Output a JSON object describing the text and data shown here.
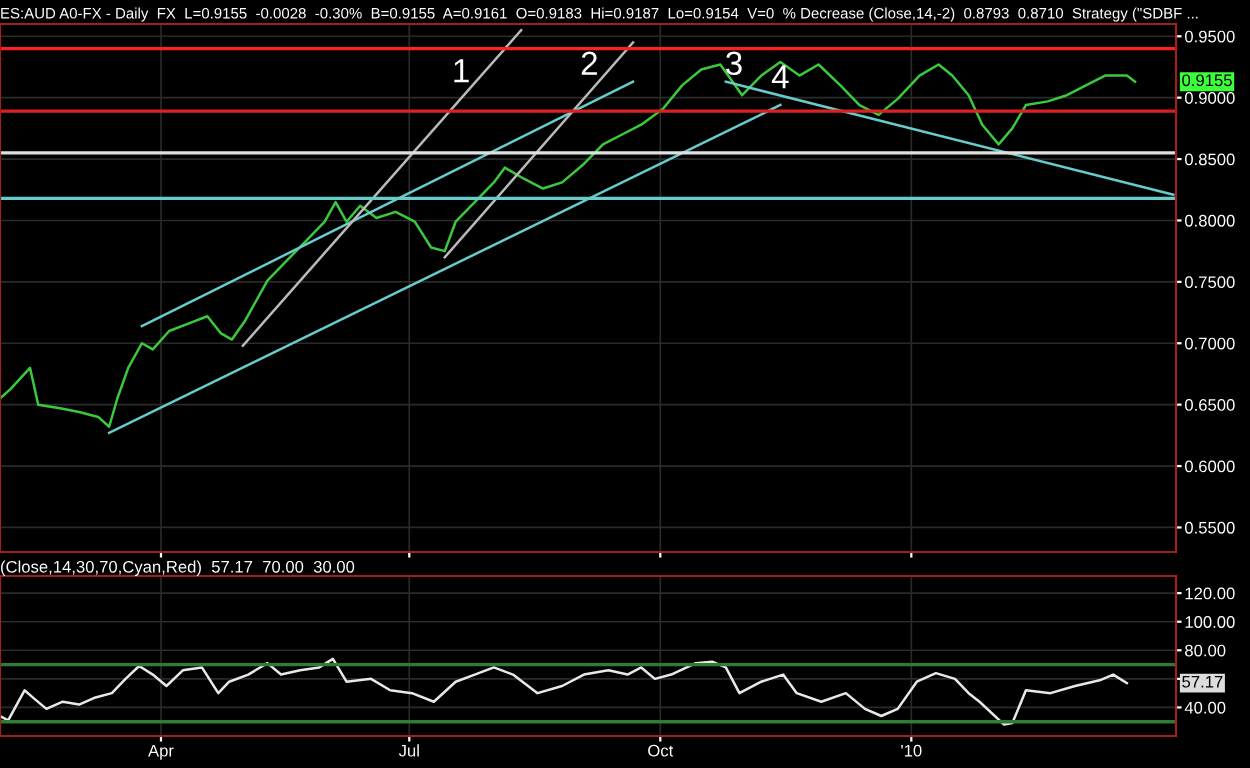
{
  "chart_data": [
    {
      "type": "line",
      "title": "ES:AUD A0-FX - Daily  FX  L=0.9155  -0.0028  -0.30%  B=0.9155  A=0.9161  O=0.9183  Hi=0.9187  Lo=0.9154  V=0  % Decrease (Close,14,-2)  0.8793  0.8710  Strategy (\"SDBF ...",
      "xlim": [
        "2009-02-01",
        "2010-04-08"
      ],
      "ylim": [
        0.53,
        0.96
      ],
      "xticks": [
        {
          "value": "2009-04-01",
          "label": null
        },
        {
          "value": "2009-07-01",
          "label": null
        },
        {
          "value": "2009-10-01",
          "label": null
        },
        {
          "value": "2010-01-01",
          "label": null
        }
      ],
      "yticks": [
        {
          "value": 0.55,
          "label": "0.5500"
        },
        {
          "value": 0.6,
          "label": "0.6000"
        },
        {
          "value": 0.65,
          "label": "0.6500"
        },
        {
          "value": 0.7,
          "label": "0.7000"
        },
        {
          "value": 0.75,
          "label": "0.7500"
        },
        {
          "value": 0.8,
          "label": "0.8000"
        },
        {
          "value": 0.85,
          "label": "0.8500"
        },
        {
          "value": 0.9,
          "label": "0.9000"
        },
        {
          "value": 0.95,
          "label": "0.9500"
        }
      ],
      "tick_labels": "y",
      "grid": true,
      "legend": false,
      "series": [
        {
          "color": "#3cc83c",
          "x": [
            "2009-02-01",
            "2009-02-05",
            "2009-02-12",
            "2009-02-15",
            "2009-02-23",
            "2009-03-02",
            "2009-03-09",
            "2009-03-13",
            "2009-03-16",
            "2009-03-20",
            "2009-03-25",
            "2009-03-29",
            "2009-04-04",
            "2009-04-11",
            "2009-04-18",
            "2009-04-23",
            "2009-04-27",
            "2009-05-02",
            "2009-05-10",
            "2009-05-17",
            "2009-05-24",
            "2009-05-31",
            "2009-06-04",
            "2009-06-08",
            "2009-06-13",
            "2009-06-19",
            "2009-06-26",
            "2009-07-03",
            "2009-07-09",
            "2009-07-14",
            "2009-07-18",
            "2009-07-25",
            "2009-08-01",
            "2009-08-05",
            "2009-08-12",
            "2009-08-19",
            "2009-08-26",
            "2009-09-03",
            "2009-09-10",
            "2009-09-17",
            "2009-09-24",
            "2009-10-02",
            "2009-10-09",
            "2009-10-16",
            "2009-10-23",
            "2009-10-31",
            "2009-11-07",
            "2009-11-14",
            "2009-11-21",
            "2009-11-28",
            "2009-12-06",
            "2009-12-13",
            "2009-12-20",
            "2009-12-27",
            "2010-01-04",
            "2010-01-11",
            "2010-01-16",
            "2010-01-22",
            "2010-01-27",
            "2010-02-02",
            "2010-02-07",
            "2010-02-12",
            "2010-02-20",
            "2010-02-27",
            "2010-03-06",
            "2010-03-13",
            "2010-03-21",
            "2010-03-24"
          ],
          "values": [
            0.655,
            0.663,
            0.68,
            0.65,
            0.647,
            0.644,
            0.64,
            0.632,
            0.655,
            0.68,
            0.7,
            0.695,
            0.71,
            0.716,
            0.722,
            0.708,
            0.703,
            0.719,
            0.751,
            0.767,
            0.783,
            0.799,
            0.815,
            0.799,
            0.812,
            0.802,
            0.807,
            0.799,
            0.778,
            0.775,
            0.799,
            0.815,
            0.831,
            0.843,
            0.834,
            0.826,
            0.831,
            0.846,
            0.862,
            0.87,
            0.878,
            0.891,
            0.91,
            0.923,
            0.927,
            0.902,
            0.918,
            0.929,
            0.918,
            0.927,
            0.91,
            0.894,
            0.886,
            0.899,
            0.918,
            0.927,
            0.918,
            0.902,
            0.878,
            0.862,
            0.875,
            0.894,
            0.897,
            0.902,
            0.91,
            0.918,
            0.918,
            0.913
          ]
        },
        {
          "color": "#66cccc",
          "x": [
            "2009-03-13",
            "2009-11-14"
          ],
          "values": [
            0.627,
            0.894
          ]
        },
        {
          "color": "#66cccc",
          "x": [
            "2009-03-25",
            "2009-09-21"
          ],
          "values": [
            0.714,
            0.913
          ]
        },
        {
          "color": "#66cccc",
          "x": [
            "2009-10-25",
            "2010-04-07"
          ],
          "values": [
            0.913,
            0.821
          ]
        },
        {
          "color": "#bbbbbb",
          "x": [
            "2009-05-01",
            "2009-08-11"
          ],
          "values": [
            0.698,
            0.955
          ]
        },
        {
          "color": "#bbbbbb",
          "x": [
            "2009-07-14",
            "2009-09-21"
          ],
          "values": [
            0.77,
            0.945
          ]
        }
      ],
      "ref_lines": [
        {
          "axis": "y",
          "value": 0.94,
          "color": "#ff2020"
        },
        {
          "axis": "y",
          "value": 0.889,
          "color": "#e02020"
        },
        {
          "axis": "y",
          "value": 0.855,
          "color": "#e0e0e0"
        },
        {
          "axis": "y",
          "value": 0.818,
          "color": "#66cccc"
        }
      ],
      "annotations": [
        {
          "text": "1",
          "x": "2009-07-20",
          "y": 0.907
        },
        {
          "text": "2",
          "x": "2009-09-05",
          "y": 0.913
        },
        {
          "text": "3",
          "x": "2009-10-28",
          "y": 0.913
        },
        {
          "text": "4",
          "x": "2009-11-14",
          "y": 0.902
        },
        "0.9155"
      ]
    },
    {
      "type": "line",
      "title": "(Close,14,30,70,Cyan,Red)  57.17  70.00  30.00",
      "xlim": [
        "2009-02-01",
        "2010-04-08"
      ],
      "ylim": [
        20,
        132
      ],
      "xticks": [
        {
          "value": "2009-04-01",
          "label": "Apr"
        },
        {
          "value": "2009-07-01",
          "label": "Jul"
        },
        {
          "value": "2009-10-01",
          "label": "Oct"
        },
        {
          "value": "2010-01-01",
          "label": "'10"
        }
      ],
      "yticks": [
        {
          "value": 40,
          "label": "40.00"
        },
        {
          "value": 60,
          "label": null
        },
        {
          "value": 80,
          "label": "80.00"
        },
        {
          "value": 100,
          "label": "100.00"
        },
        {
          "value": 120,
          "label": "120.00"
        }
      ],
      "grid": true,
      "legend": false,
      "series": [
        {
          "color": "#e8e8e8",
          "x": [
            "2009-02-01",
            "2009-02-04",
            "2009-02-10",
            "2009-02-13",
            "2009-02-18",
            "2009-02-24",
            "2009-03-02",
            "2009-03-08",
            "2009-03-14",
            "2009-03-19",
            "2009-03-24",
            "2009-03-29",
            "2009-04-03",
            "2009-04-09",
            "2009-04-16",
            "2009-04-22",
            "2009-04-26",
            "2009-05-03",
            "2009-05-10",
            "2009-05-15",
            "2009-05-22",
            "2009-05-29",
            "2009-06-03",
            "2009-06-08",
            "2009-06-17",
            "2009-06-24",
            "2009-07-02",
            "2009-07-10",
            "2009-07-18",
            "2009-07-25",
            "2009-08-01",
            "2009-08-08",
            "2009-08-17",
            "2009-08-26",
            "2009-09-03",
            "2009-09-12",
            "2009-09-19",
            "2009-09-24",
            "2009-09-29",
            "2009-10-05",
            "2009-10-14",
            "2009-10-20",
            "2009-10-25",
            "2009-10-30",
            "2009-11-07",
            "2009-11-15",
            "2009-11-20",
            "2009-11-29",
            "2009-12-08",
            "2009-12-15",
            "2009-12-21",
            "2009-12-27",
            "2010-01-03",
            "2010-01-10",
            "2010-01-17",
            "2010-01-22",
            "2010-01-26",
            "2010-02-04",
            "2010-02-07",
            "2010-02-12",
            "2010-02-21",
            "2010-03-02",
            "2010-03-11",
            "2010-03-16",
            "2010-03-21"
          ],
          "values": [
            34,
            31,
            52,
            47,
            39,
            44,
            42,
            47,
            50,
            60,
            69,
            63,
            55,
            66,
            68,
            50,
            58,
            63,
            71,
            63,
            66,
            68,
            74,
            58,
            60,
            52,
            50,
            44,
            58,
            63,
            68,
            63,
            50,
            55,
            63,
            66,
            63,
            68,
            60,
            63,
            71,
            72,
            68,
            50,
            58,
            63,
            50,
            44,
            50,
            39,
            34,
            39,
            58,
            64,
            60,
            50,
            44,
            28,
            29,
            52,
            50,
            55,
            59,
            63,
            57
          ]
        }
      ],
      "ref_lines": [
        {
          "axis": "y",
          "value": 70,
          "color": "#2e7d32"
        },
        {
          "axis": "y",
          "value": 30,
          "color": "#2e7d32"
        }
      ],
      "annotations": [
        "57.17"
      ]
    }
  ]
}
